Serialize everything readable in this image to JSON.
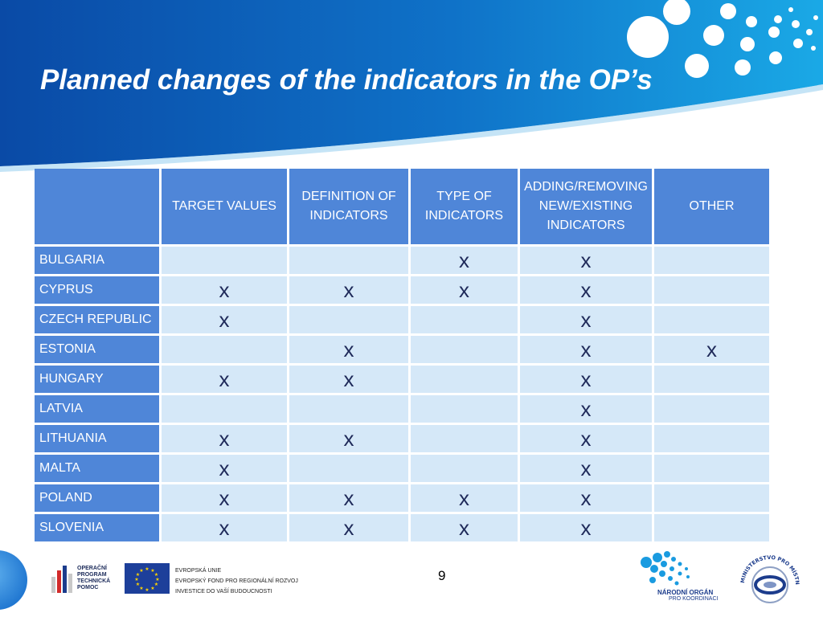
{
  "slide": {
    "title": "Planned changes of the indicators in the OP’s",
    "page_number": "9"
  },
  "table": {
    "headers": [
      "",
      "TARGET VALUES",
      "DEFINITION OF INDICATORS",
      "TYPE OF INDICATORS",
      "ADDING/REMOVING NEW/EXISTING INDICATORS",
      "OTHER"
    ],
    "rows": [
      {
        "country": "BULGARIA",
        "cells": [
          "",
          "",
          "x",
          "x",
          ""
        ]
      },
      {
        "country": "CYPRUS",
        "cells": [
          "x",
          "x",
          "x",
          "x",
          ""
        ]
      },
      {
        "country": "CZECH REPUBLIC",
        "cells": [
          "x",
          "",
          "",
          "x",
          ""
        ]
      },
      {
        "country": "ESTONIA",
        "cells": [
          "",
          "x",
          "",
          "x",
          "x"
        ]
      },
      {
        "country": "HUNGARY",
        "cells": [
          "x",
          "x",
          "",
          "x",
          ""
        ]
      },
      {
        "country": "LATVIA",
        "cells": [
          "",
          "",
          "",
          "x",
          ""
        ]
      },
      {
        "country": "LITHUANIA",
        "cells": [
          "x",
          "x",
          "",
          "x",
          ""
        ]
      },
      {
        "country": "MALTA",
        "cells": [
          "x",
          "",
          "",
          "x",
          ""
        ]
      },
      {
        "country": "POLAND",
        "cells": [
          "x",
          "x",
          "x",
          "x",
          ""
        ]
      },
      {
        "country": "SLOVENIA",
        "cells": [
          "x",
          "x",
          "x",
          "x",
          ""
        ]
      }
    ]
  },
  "footer": {
    "optp_lines": [
      "OPERAČNÍ",
      "PROGRAM",
      "TECHNICKÁ",
      "POMOC"
    ],
    "eu_lines": [
      "EVROPSKÁ UNIE",
      "EVROPSKÝ FOND PRO REGIONÁLNÍ ROZVOJ",
      "INVESTICE DO VAŠÍ BUDOUCNOSTI"
    ],
    "nok_title": "NÁRODNÍ ORGÁN",
    "nok_subtitle": "PRO KOORDINACI",
    "mmr_text": "MINISTERSTVO PRO MÍSTNÍ ROZVOJ"
  },
  "colors": {
    "banner_dark": "#0a4aa6",
    "banner_light": "#1aa3e2",
    "header_cell": "#4f86d8",
    "body_cell": "#d5e8f8",
    "mark": "#1f2a5a"
  }
}
